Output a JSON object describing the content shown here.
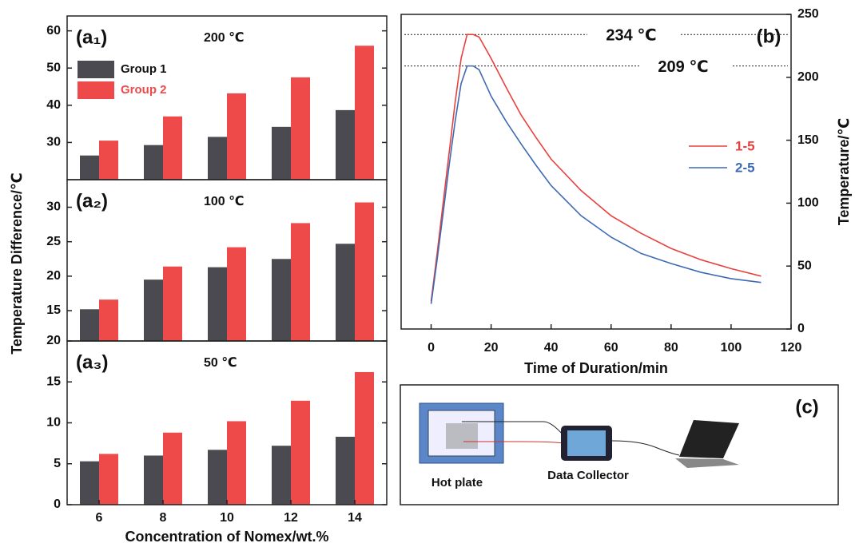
{
  "chart_data": [
    {
      "type": "bar",
      "annotations": [
        "(a₁)",
        "200 ℃"
      ],
      "series": [
        {
          "name": "Group 1",
          "color": "#4a4a50",
          "values": [
            26.5,
            29.3,
            31.5,
            34.2,
            38.7
          ]
        },
        {
          "name": "Group 2",
          "color": "#ee4a4a",
          "values": [
            30.5,
            37,
            43.2,
            47.5,
            56
          ]
        }
      ],
      "ylim": [
        20,
        64
      ],
      "yticks": [
        30,
        40,
        50,
        60
      ]
    },
    {
      "type": "bar",
      "annotations": [
        "(a₂)",
        "100 ℃"
      ],
      "ylabel": "Temperature Difference/℃",
      "series": [
        {
          "color": "#4a4a50",
          "values": [
            15.2,
            19.5,
            21.3,
            22.5,
            24.7
          ]
        },
        {
          "color": "#ee4a4a",
          "values": [
            16.6,
            21.4,
            24.2,
            27.7,
            30.7
          ]
        }
      ],
      "ylim": [
        10.6,
        34
      ],
      "yticks": [
        15,
        20,
        25,
        30
      ]
    },
    {
      "type": "bar",
      "annotations": [
        "(a₃)",
        "50 ℃"
      ],
      "xlabel": "Concentration of Nomex/wt.%",
      "categories": [
        "6",
        "8",
        "10",
        "12",
        "14"
      ],
      "series": [
        {
          "color": "#4a4a50",
          "values": [
            5.3,
            6,
            6.7,
            7.2,
            8.3
          ]
        },
        {
          "color": "#ee4a4a",
          "values": [
            6.2,
            8.8,
            10.2,
            12.7,
            16.2
          ]
        }
      ],
      "ylim": [
        0,
        20
      ],
      "yticks": [
        0,
        5,
        10,
        15,
        20
      ]
    },
    {
      "type": "line",
      "label": "(b)",
      "xlabel": "Time of Duration/min",
      "ylabel": "Temperature/℃",
      "x": [
        0,
        2,
        4,
        6,
        8,
        10,
        12,
        14,
        16,
        20,
        25,
        30,
        35,
        40,
        50,
        60,
        70,
        80,
        90,
        100,
        110
      ],
      "series": [
        {
          "name": "1-5",
          "color": "#e8413f",
          "values": [
            22,
            60,
            100,
            140,
            180,
            215,
            234,
            234,
            232,
            215,
            192,
            170,
            152,
            135,
            110,
            90,
            76,
            64,
            55,
            48,
            42
          ]
        },
        {
          "name": "2-5",
          "color": "#3e6ab3",
          "values": [
            20,
            55,
            92,
            130,
            165,
            195,
            209,
            209,
            206,
            185,
            165,
            147,
            130,
            114,
            90,
            73,
            60,
            52,
            45,
            40,
            37
          ]
        }
      ],
      "annotations": [
        {
          "text": "234 ℃",
          "value": 234
        },
        {
          "text": "209 ℃",
          "value": 209
        }
      ],
      "xlim": [
        -10,
        120
      ],
      "xticks": [
        0,
        20,
        40,
        60,
        80,
        100,
        120
      ],
      "ylim": [
        0,
        250
      ],
      "yticks": [
        0,
        50,
        100,
        150,
        200,
        250
      ]
    }
  ],
  "diagram": {
    "label": "(c)",
    "nodes": [
      {
        "label": "Hot plate"
      },
      {
        "label": "Data Collector"
      }
    ]
  }
}
